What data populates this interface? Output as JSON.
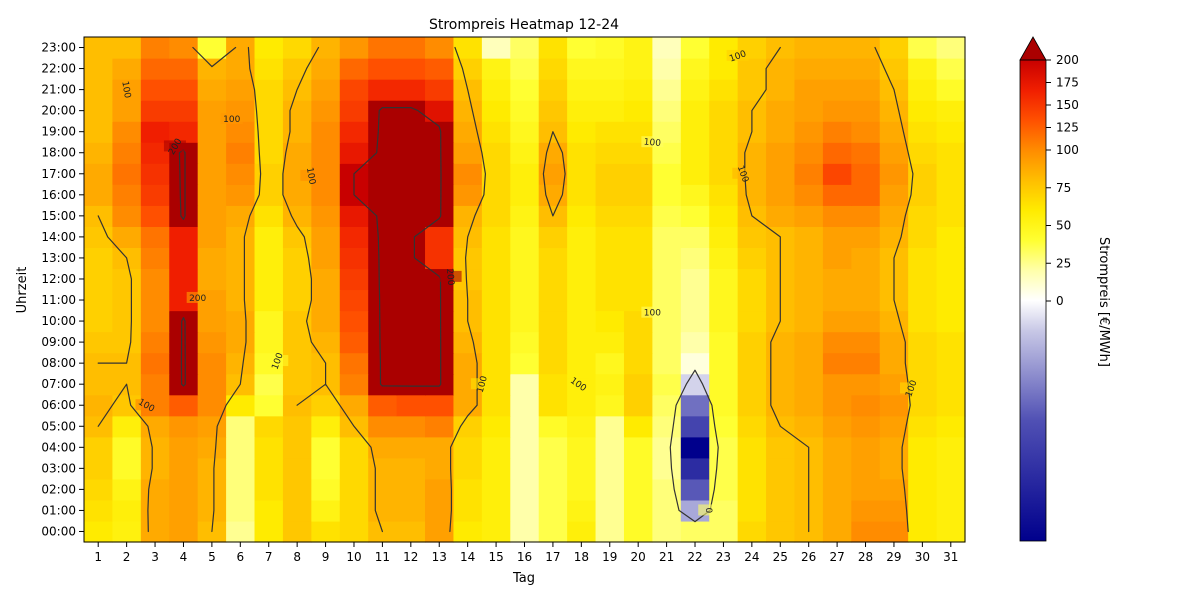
{
  "chart_data": {
    "type": "heatmap",
    "title": "Strompreis Heatmap 12-24",
    "xlabel": "Tag",
    "ylabel": "Uhrzeit",
    "colorbar_label": "Strompreis [€/MWh]",
    "colorbar_ticks": [
      0,
      25,
      50,
      75,
      100,
      125,
      150,
      175,
      200
    ],
    "colorbar_range": [
      -200,
      200
    ],
    "colorbar_extend": "max",
    "x_categories": [
      "1",
      "2",
      "3",
      "4",
      "5",
      "6",
      "7",
      "8",
      "9",
      "10",
      "11",
      "12",
      "13",
      "14",
      "15",
      "16",
      "17",
      "18",
      "19",
      "20",
      "21",
      "22",
      "23",
      "24",
      "25",
      "26",
      "27",
      "28",
      "29",
      "30",
      "31"
    ],
    "y_categories": [
      "00:00",
      "01:00",
      "02:00",
      "03:00",
      "04:00",
      "05:00",
      "06:00",
      "07:00",
      "08:00",
      "09:00",
      "10:00",
      "11:00",
      "12:00",
      "13:00",
      "14:00",
      "15:00",
      "16:00",
      "17:00",
      "18:00",
      "19:00",
      "20:00",
      "21:00",
      "22:00",
      "23:00"
    ],
    "values": [
      [
        75,
        68,
        110,
        115,
        100,
        30,
        75,
        95,
        80,
        85,
        100,
        100,
        115,
        75,
        70,
        25,
        45,
        70,
        30,
        55,
        35,
        40,
        40,
        85,
        95,
        100,
        110,
        125,
        125,
        75,
        70
      ],
      [
        80,
        70,
        110,
        115,
        105,
        35,
        75,
        95,
        65,
        85,
        105,
        105,
        115,
        80,
        70,
        25,
        45,
        65,
        30,
        55,
        35,
        -45,
        40,
        80,
        95,
        100,
        110,
        120,
        120,
        75,
        70
      ],
      [
        85,
        65,
        110,
        115,
        105,
        35,
        80,
        95,
        55,
        85,
        105,
        105,
        115,
        80,
        70,
        25,
        45,
        60,
        30,
        55,
        35,
        -95,
        45,
        80,
        95,
        100,
        110,
        115,
        115,
        75,
        70
      ],
      [
        90,
        55,
        105,
        115,
        105,
        35,
        80,
        95,
        50,
        85,
        105,
        105,
        110,
        85,
        70,
        25,
        45,
        60,
        30,
        55,
        30,
        -145,
        45,
        80,
        95,
        100,
        110,
        115,
        110,
        75,
        70
      ],
      [
        90,
        55,
        105,
        115,
        110,
        35,
        80,
        95,
        50,
        85,
        110,
        110,
        110,
        85,
        70,
        25,
        45,
        60,
        30,
        55,
        30,
        -200,
        45,
        80,
        95,
        100,
        110,
        115,
        110,
        75,
        70
      ],
      [
        100,
        70,
        110,
        120,
        115,
        35,
        85,
        95,
        70,
        100,
        125,
        125,
        130,
        90,
        75,
        25,
        55,
        65,
        30,
        75,
        35,
        -115,
        50,
        85,
        100,
        105,
        115,
        120,
        115,
        80,
        75
      ],
      [
        105,
        95,
        130,
        145,
        125,
        75,
        50,
        100,
        90,
        110,
        145,
        150,
        150,
        110,
        80,
        25,
        80,
        70,
        60,
        90,
        40,
        -80,
        55,
        90,
        105,
        110,
        120,
        125,
        120,
        85,
        80
      ],
      [
        100,
        100,
        130,
        205,
        125,
        100,
        45,
        95,
        100,
        130,
        205,
        205,
        205,
        110,
        80,
        25,
        80,
        70,
        65,
        90,
        45,
        -20,
        55,
        90,
        105,
        110,
        120,
        120,
        115,
        85,
        80
      ],
      [
        100,
        100,
        135,
        205,
        125,
        105,
        55,
        95,
        100,
        135,
        205,
        205,
        205,
        110,
        80,
        50,
        85,
        70,
        60,
        85,
        40,
        10,
        55,
        90,
        105,
        110,
        130,
        130,
        110,
        85,
        80
      ],
      [
        95,
        95,
        130,
        205,
        120,
        110,
        60,
        95,
        105,
        145,
        205,
        205,
        205,
        105,
        80,
        55,
        85,
        70,
        70,
        85,
        40,
        25,
        55,
        90,
        105,
        110,
        125,
        125,
        110,
        85,
        80
      ],
      [
        90,
        95,
        125,
        205,
        115,
        110,
        60,
        95,
        110,
        150,
        205,
        205,
        205,
        100,
        80,
        60,
        85,
        70,
        75,
        85,
        40,
        30,
        60,
        85,
        100,
        105,
        115,
        115,
        105,
        80,
        75
      ],
      [
        90,
        95,
        125,
        175,
        115,
        105,
        70,
        90,
        110,
        155,
        205,
        205,
        205,
        100,
        80,
        60,
        85,
        70,
        80,
        80,
        40,
        30,
        60,
        85,
        100,
        105,
        110,
        110,
        100,
        80,
        75
      ],
      [
        90,
        95,
        125,
        175,
        110,
        105,
        70,
        90,
        110,
        160,
        205,
        205,
        205,
        95,
        80,
        60,
        85,
        70,
        80,
        80,
        40,
        30,
        60,
        85,
        100,
        105,
        110,
        110,
        100,
        80,
        75
      ],
      [
        90,
        100,
        130,
        175,
        110,
        105,
        70,
        90,
        115,
        165,
        205,
        205,
        165,
        95,
        80,
        60,
        85,
        70,
        80,
        80,
        40,
        35,
        65,
        90,
        100,
        105,
        115,
        110,
        100,
        80,
        75
      ],
      [
        95,
        110,
        135,
        175,
        115,
        105,
        70,
        95,
        115,
        170,
        205,
        205,
        165,
        100,
        80,
        60,
        90,
        70,
        80,
        80,
        40,
        40,
        70,
        95,
        100,
        105,
        115,
        115,
        105,
        85,
        75
      ],
      [
        100,
        125,
        150,
        205,
        115,
        110,
        80,
        105,
        120,
        180,
        205,
        205,
        205,
        105,
        85,
        65,
        100,
        75,
        85,
        85,
        45,
        50,
        75,
        100,
        110,
        115,
        125,
        125,
        110,
        85,
        80
      ],
      [
        110,
        130,
        160,
        205,
        115,
        120,
        90,
        110,
        125,
        200,
        205,
        205,
        205,
        120,
        85,
        70,
        110,
        80,
        90,
        90,
        50,
        60,
        80,
        105,
        115,
        125,
        140,
        140,
        115,
        90,
        80
      ],
      [
        110,
        135,
        165,
        205,
        115,
        125,
        90,
        110,
        125,
        200,
        205,
        205,
        205,
        125,
        85,
        70,
        115,
        80,
        90,
        90,
        50,
        70,
        85,
        105,
        115,
        130,
        155,
        140,
        120,
        90,
        80
      ],
      [
        105,
        130,
        170,
        205,
        115,
        130,
        85,
        110,
        125,
        180,
        205,
        205,
        205,
        115,
        85,
        65,
        110,
        80,
        85,
        85,
        45,
        70,
        85,
        105,
        115,
        125,
        140,
        135,
        115,
        85,
        80
      ],
      [
        100,
        125,
        175,
        170,
        115,
        125,
        85,
        105,
        125,
        170,
        205,
        205,
        205,
        110,
        80,
        60,
        100,
        75,
        80,
        80,
        40,
        70,
        85,
        100,
        110,
        120,
        130,
        125,
        110,
        80,
        75
      ],
      [
        100,
        115,
        160,
        160,
        115,
        120,
        85,
        105,
        120,
        160,
        205,
        205,
        185,
        105,
        75,
        55,
        95,
        70,
        70,
        75,
        35,
        70,
        85,
        100,
        110,
        115,
        120,
        120,
        105,
        75,
        70
      ],
      [
        100,
        115,
        150,
        150,
        110,
        115,
        85,
        100,
        115,
        155,
        170,
        170,
        160,
        100,
        70,
        50,
        90,
        65,
        65,
        70,
        30,
        65,
        80,
        95,
        105,
        115,
        115,
        115,
        100,
        70,
        55
      ],
      [
        100,
        110,
        140,
        140,
        105,
        110,
        80,
        95,
        110,
        140,
        150,
        150,
        145,
        90,
        65,
        45,
        85,
        60,
        60,
        65,
        25,
        60,
        75,
        95,
        105,
        110,
        110,
        110,
        95,
        65,
        45
      ],
      [
        100,
        100,
        130,
        125,
        50,
        110,
        75,
        85,
        105,
        120,
        135,
        135,
        125,
        80,
        20,
        40,
        80,
        50,
        55,
        65,
        20,
        50,
        75,
        90,
        100,
        105,
        105,
        105,
        90,
        45,
        35
      ]
    ]
  }
}
